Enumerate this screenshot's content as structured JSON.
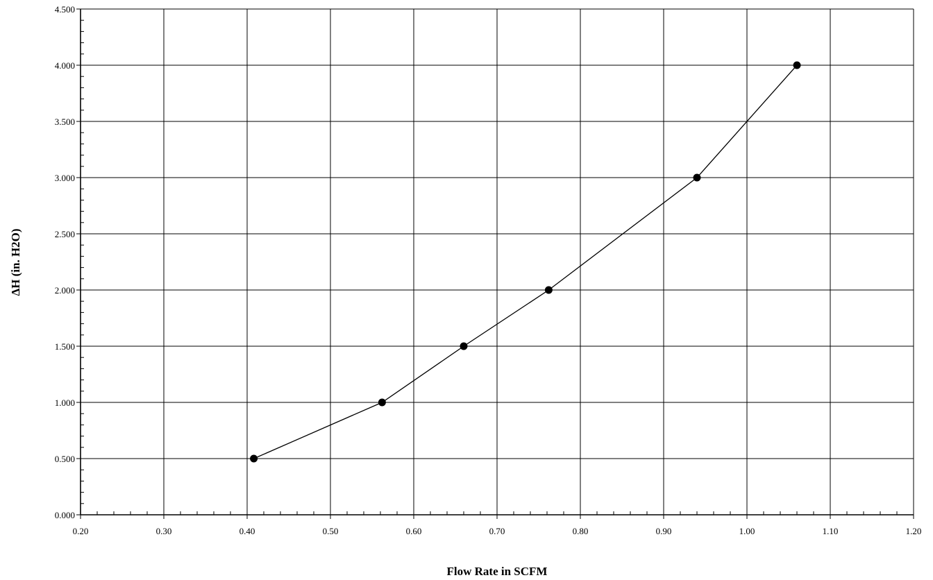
{
  "chart_data": {
    "type": "line",
    "xlabel": "Flow Rate in SCFM",
    "ylabel": "ΔH (in. H2O)",
    "xlim": [
      0.2,
      1.2
    ],
    "ylim": [
      0.0,
      4.5
    ],
    "x_ticks": [
      "0.20",
      "0.30",
      "0.40",
      "0.50",
      "0.60",
      "0.70",
      "0.80",
      "0.90",
      "1.00",
      "1.10",
      "1.20"
    ],
    "y_ticks": [
      "0.000",
      "0.500",
      "1.000",
      "1.500",
      "2.000",
      "2.500",
      "3.000",
      "3.500",
      "4.000",
      "4.500"
    ],
    "grid": true,
    "legend": "none",
    "series": [
      {
        "x": [
          0.408,
          0.562,
          0.66,
          0.762,
          0.94,
          1.06
        ],
        "y": [
          0.5,
          1.0,
          1.5,
          2.0,
          3.0,
          4.0
        ]
      }
    ],
    "colors": {
      "line": "#000000",
      "marker": "#000000",
      "grid": "#000000",
      "background": "#ffffff"
    }
  }
}
